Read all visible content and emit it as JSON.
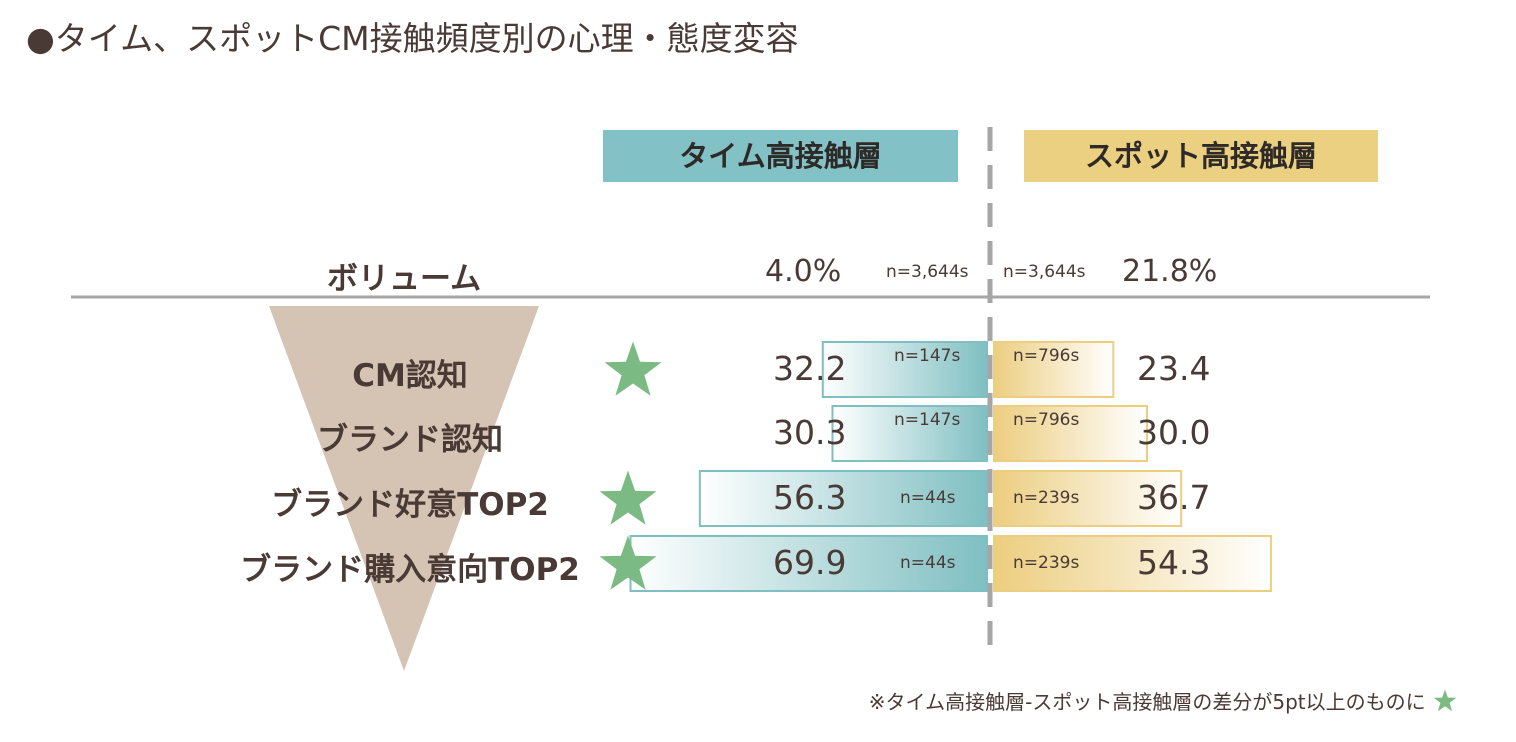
{
  "title": "●タイム、スポットCM接触頻度別の心理・態度変容",
  "headers": {
    "time": "タイム高接触層",
    "spot": "スポット高接触層"
  },
  "volume": {
    "label": "ボリューム",
    "time_value": "4.0%",
    "time_n": "n=3,644s",
    "spot_n": "n=3,644s",
    "spot_value": "21.8%"
  },
  "note": "※タイム高接触層-スポット高接触層の差分が5pt以上のものに",
  "colors": {
    "time_bar": "#7fbfc2",
    "spot_bar": "#ecce80",
    "star": "#7cba84",
    "funnel": "#d5c3b3"
  },
  "chart_data": {
    "type": "bar",
    "orientation": "horizontal-butterfly",
    "categories": [
      "CM認知",
      "ブランド認知",
      "ブランド好意TOP2",
      "ブランド購入意向TOP2"
    ],
    "series": [
      {
        "name": "タイム高接触層",
        "values": [
          32.2,
          30.3,
          56.3,
          69.9
        ],
        "value_labels": [
          "32.2",
          "30.3",
          "56.3",
          "69.9"
        ],
        "n": [
          "n=147s",
          "n=147s",
          "n=44s",
          "n=44s"
        ]
      },
      {
        "name": "スポット高接触層",
        "values": [
          23.4,
          30.0,
          36.7,
          54.3
        ],
        "value_labels": [
          "23.4",
          "30.0",
          "36.7",
          "54.3"
        ],
        "n": [
          "n=796s",
          "n=796s",
          "n=239s",
          "n=239s"
        ]
      }
    ],
    "stars": [
      true,
      false,
      true,
      true
    ]
  }
}
